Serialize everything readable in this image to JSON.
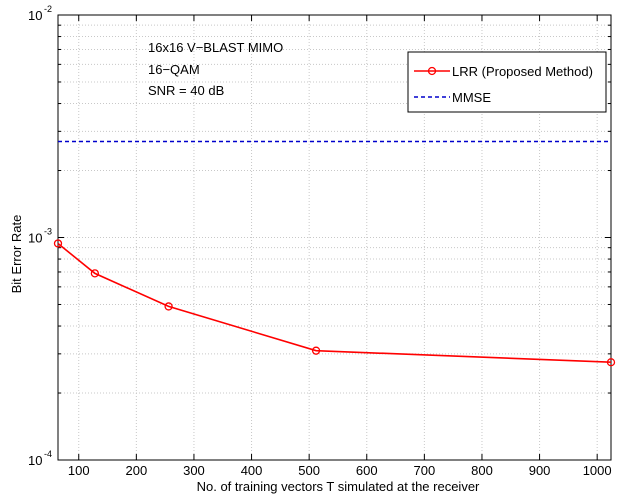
{
  "chart_data": {
    "type": "line",
    "xlabel": "No. of training vectors T simulated at the receiver",
    "ylabel": "Bit Error Rate",
    "xlim": [
      64,
      1024
    ],
    "ylim": [
      0.0001,
      0.01
    ],
    "yscale": "log",
    "grid": true,
    "x_ticks": [
      100,
      200,
      300,
      400,
      500,
      600,
      700,
      800,
      900,
      1000
    ],
    "y_ticks": [
      {
        "value": 0.01,
        "base": "10",
        "exp": "-2"
      },
      {
        "value": 0.001,
        "base": "10",
        "exp": "-3"
      },
      {
        "value": 0.0001,
        "base": "10",
        "exp": "-4"
      }
    ],
    "annotations": [
      "16x16 V−BLAST MIMO",
      "16−QAM",
      "SNR = 40 dB"
    ],
    "legend_position": "top-right",
    "series": [
      {
        "name": "LRR (Proposed Method)",
        "color": "#ff0000",
        "style": "solid",
        "marker": "circle",
        "x": [
          64,
          128,
          256,
          512,
          1024
        ],
        "y": [
          0.00094,
          0.00069,
          0.00049,
          0.00031,
          0.000275
        ]
      },
      {
        "name": "MMSE",
        "color": "#0000cc",
        "style": "dashed",
        "marker": "none",
        "x": [
          64,
          1024
        ],
        "y": [
          0.0027,
          0.0027
        ]
      }
    ]
  }
}
